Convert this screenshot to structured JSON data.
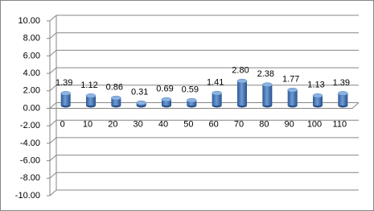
{
  "chart_data": {
    "type": "bar",
    "style": "3d-cylinder",
    "categories": [
      "0",
      "10",
      "20",
      "30",
      "40",
      "50",
      "60",
      "70",
      "80",
      "90",
      "100",
      "110"
    ],
    "values": [
      1.39,
      1.12,
      0.86,
      0.31,
      0.69,
      0.59,
      1.41,
      2.8,
      2.38,
      1.77,
      1.13,
      1.39
    ],
    "value_labels": [
      "1.39",
      "1.12",
      "0.86",
      "0.31",
      "0.69",
      "0.59",
      "1.41",
      "2.80",
      "2.38",
      "1.77",
      "1.13",
      "1.39"
    ],
    "color": "#4a7ebb",
    "ylim": [
      -10,
      10
    ],
    "yticks": [
      {
        "value": -10,
        "label": "-10.00"
      },
      {
        "value": -8,
        "label": "-8.00"
      },
      {
        "value": -6,
        "label": "-6.00"
      },
      {
        "value": -4,
        "label": "-4.00"
      },
      {
        "value": -2,
        "label": "-2.00"
      },
      {
        "value": 0,
        "label": "0.00"
      },
      {
        "value": 2,
        "label": "2.00"
      },
      {
        "value": 4,
        "label": "4.00"
      },
      {
        "value": 6,
        "label": "6.00"
      },
      {
        "value": 8,
        "label": "8.00"
      },
      {
        "value": 10,
        "label": "10.00"
      }
    ],
    "grid": true
  }
}
